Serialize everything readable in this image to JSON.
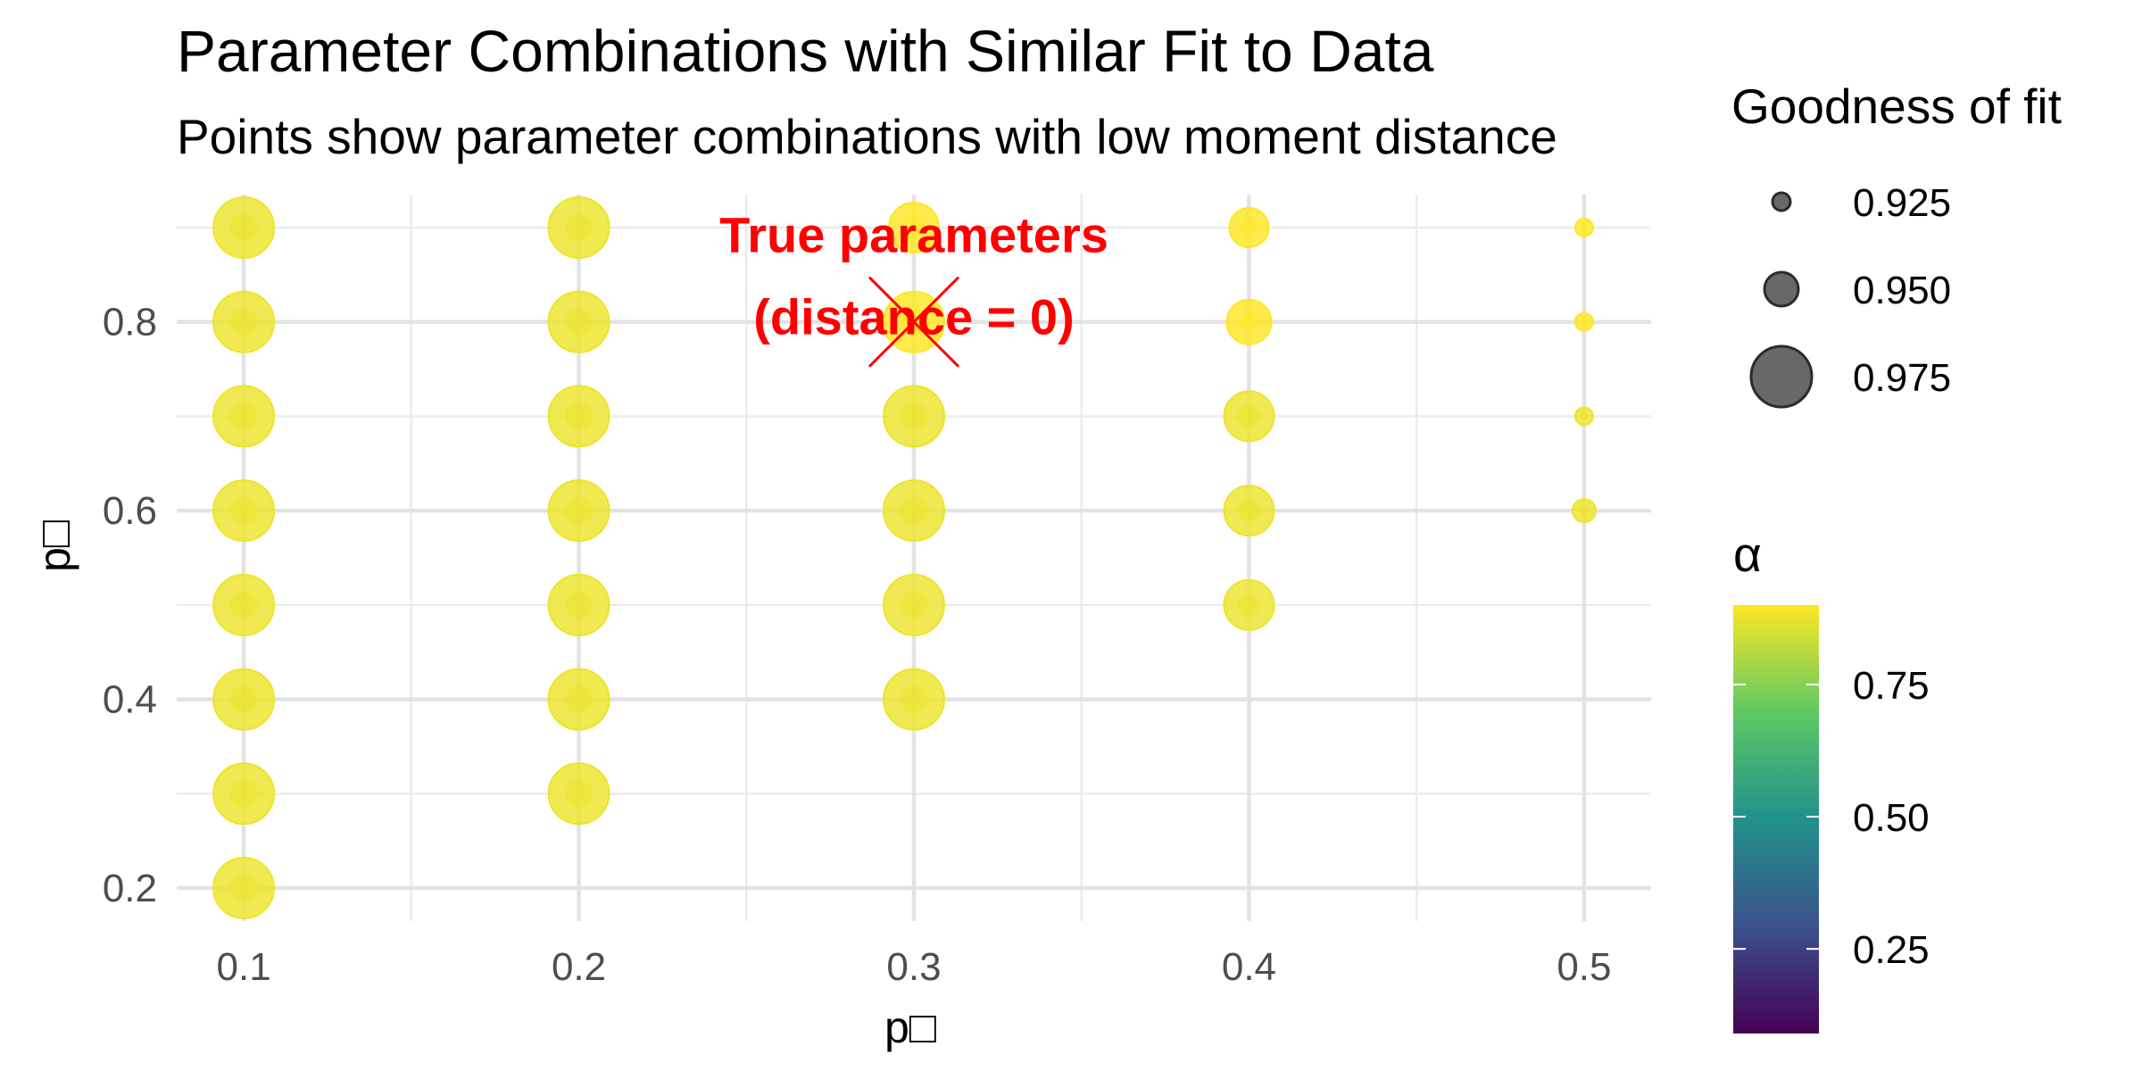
{
  "chart_data": {
    "type": "scatter",
    "title": "Parameter Combinations with Similar Fit to Data",
    "subtitle": "Points show parameter combinations with low moment distance",
    "xlabel": "p□",
    "ylabel": "p□",
    "xlim": [
      0.08,
      0.52
    ],
    "ylim": [
      0.165,
      0.935
    ],
    "x_ticks": [
      0.1,
      0.2,
      0.3,
      0.4,
      0.5
    ],
    "x_tick_labels": [
      "0.1",
      "0.2",
      "0.3",
      "0.4",
      "0.5"
    ],
    "y_ticks": [
      0.2,
      0.4,
      0.6,
      0.8
    ],
    "y_tick_labels": [
      "0.2",
      "0.4",
      "0.6",
      "0.8"
    ],
    "grid": true,
    "points": [
      {
        "x": 0.1,
        "y": 0.9,
        "fit": 0.975,
        "alpha": 0.88
      },
      {
        "x": 0.1,
        "y": 0.8,
        "fit": 0.975,
        "alpha": 0.88
      },
      {
        "x": 0.1,
        "y": 0.7,
        "fit": 0.975,
        "alpha": 0.88
      },
      {
        "x": 0.1,
        "y": 0.6,
        "fit": 0.975,
        "alpha": 0.88
      },
      {
        "x": 0.1,
        "y": 0.5,
        "fit": 0.975,
        "alpha": 0.88
      },
      {
        "x": 0.1,
        "y": 0.4,
        "fit": 0.975,
        "alpha": 0.88
      },
      {
        "x": 0.1,
        "y": 0.3,
        "fit": 0.975,
        "alpha": 0.88
      },
      {
        "x": 0.1,
        "y": 0.2,
        "fit": 0.975,
        "alpha": 0.88
      },
      {
        "x": 0.2,
        "y": 0.9,
        "fit": 0.975,
        "alpha": 0.88
      },
      {
        "x": 0.2,
        "y": 0.8,
        "fit": 0.975,
        "alpha": 0.88
      },
      {
        "x": 0.2,
        "y": 0.7,
        "fit": 0.975,
        "alpha": 0.88
      },
      {
        "x": 0.2,
        "y": 0.6,
        "fit": 0.975,
        "alpha": 0.88
      },
      {
        "x": 0.2,
        "y": 0.5,
        "fit": 0.975,
        "alpha": 0.88
      },
      {
        "x": 0.2,
        "y": 0.4,
        "fit": 0.975,
        "alpha": 0.88
      },
      {
        "x": 0.2,
        "y": 0.3,
        "fit": 0.975,
        "alpha": 0.88
      },
      {
        "x": 0.3,
        "y": 0.9,
        "fit": 0.965,
        "alpha": 0.9
      },
      {
        "x": 0.3,
        "y": 0.8,
        "fit": 0.975,
        "alpha": 0.9
      },
      {
        "x": 0.3,
        "y": 0.7,
        "fit": 0.975,
        "alpha": 0.88
      },
      {
        "x": 0.3,
        "y": 0.6,
        "fit": 0.975,
        "alpha": 0.88
      },
      {
        "x": 0.3,
        "y": 0.5,
        "fit": 0.975,
        "alpha": 0.88
      },
      {
        "x": 0.3,
        "y": 0.4,
        "fit": 0.975,
        "alpha": 0.88
      },
      {
        "x": 0.4,
        "y": 0.9,
        "fit": 0.955,
        "alpha": 0.9
      },
      {
        "x": 0.4,
        "y": 0.8,
        "fit": 0.96,
        "alpha": 0.9
      },
      {
        "x": 0.4,
        "y": 0.7,
        "fit": 0.965,
        "alpha": 0.88
      },
      {
        "x": 0.4,
        "y": 0.6,
        "fit": 0.965,
        "alpha": 0.88
      },
      {
        "x": 0.4,
        "y": 0.5,
        "fit": 0.965,
        "alpha": 0.88
      },
      {
        "x": 0.5,
        "y": 0.9,
        "fit": 0.92,
        "alpha": 0.9
      },
      {
        "x": 0.5,
        "y": 0.8,
        "fit": 0.93,
        "alpha": 0.9
      },
      {
        "x": 0.5,
        "y": 0.7,
        "fit": 0.935,
        "alpha": 0.88
      },
      {
        "x": 0.5,
        "y": 0.6,
        "fit": 0.94,
        "alpha": 0.88
      }
    ],
    "true_parameters": {
      "x": 0.3,
      "y": 0.8,
      "label_line1": "True parameters",
      "label_line2": "(distance = 0)",
      "color": "#ff0000"
    },
    "size_legend": {
      "title": "Goodness of fit",
      "values": [
        0.925,
        0.95,
        0.975
      ],
      "labels": [
        "0.925",
        "0.950",
        "0.975"
      ]
    },
    "color_legend": {
      "title": "α",
      "ticks": [
        0.25,
        0.5,
        0.75
      ],
      "tick_labels": [
        "0.25",
        "0.50",
        "0.75"
      ],
      "range": [
        0.09,
        0.9
      ],
      "colors": [
        "#440154",
        "#3b528b",
        "#21918c",
        "#5ec962",
        "#fde725"
      ]
    }
  }
}
